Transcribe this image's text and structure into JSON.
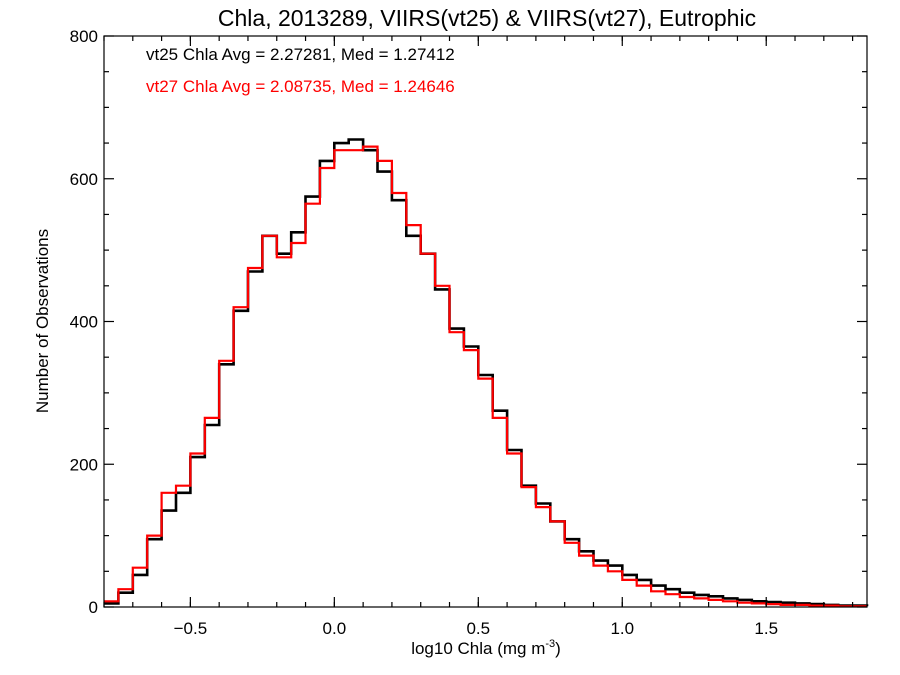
{
  "chart_data": {
    "type": "line",
    "step": true,
    "title": "Chla, 2013289, VIIRS(vt25) & VIIRS(vt27), Eutrophic",
    "xlabel": "log10 Chla (mg m",
    "xlabel_sup": "-3",
    "xlabel_end": ")",
    "ylabel": "Number of Observations",
    "xlim": [
      -0.8,
      1.85
    ],
    "ylim": [
      0,
      800
    ],
    "x_ticks": [
      -0.5,
      0.0,
      0.5,
      1.0,
      1.5
    ],
    "x_tick_labels": [
      "−0.5",
      "0.0",
      "0.5",
      "1.0",
      "1.5"
    ],
    "y_ticks": [
      0,
      200,
      400,
      600,
      800
    ],
    "y_tick_labels": [
      "0",
      "200",
      "400",
      "600",
      "800"
    ],
    "grid": false,
    "annotations": [
      {
        "text": "vt25 Chla Avg = 2.27281, Med = 1.27412",
        "color": "#000000"
      },
      {
        "text": "vt27 Chla Avg = 2.08735, Med = 1.24646",
        "color": "#ff0000"
      }
    ],
    "series": [
      {
        "color": "#000000",
        "x": [
          -0.8,
          -0.75,
          -0.7,
          -0.65,
          -0.6,
          -0.55,
          -0.5,
          -0.45,
          -0.4,
          -0.35,
          -0.3,
          -0.25,
          -0.2,
          -0.15,
          -0.1,
          -0.05,
          0.0,
          0.05,
          0.1,
          0.15,
          0.2,
          0.25,
          0.3,
          0.35,
          0.4,
          0.45,
          0.5,
          0.55,
          0.6,
          0.65,
          0.7,
          0.75,
          0.8,
          0.85,
          0.9,
          0.95,
          1.0,
          1.05,
          1.1,
          1.15,
          1.2,
          1.25,
          1.3,
          1.35,
          1.4,
          1.45,
          1.5,
          1.55,
          1.6,
          1.65,
          1.7,
          1.75,
          1.8,
          1.85
        ],
        "y": [
          5,
          20,
          45,
          95,
          135,
          160,
          210,
          255,
          340,
          415,
          470,
          520,
          495,
          525,
          575,
          625,
          650,
          655,
          640,
          610,
          570,
          520,
          495,
          445,
          390,
          365,
          325,
          275,
          220,
          170,
          145,
          120,
          95,
          78,
          65,
          58,
          45,
          38,
          30,
          25,
          20,
          17,
          15,
          12,
          10,
          8,
          7,
          6,
          5,
          4,
          3,
          2,
          2,
          1
        ]
      },
      {
        "color": "#ff0000",
        "x": [
          -0.8,
          -0.75,
          -0.7,
          -0.65,
          -0.6,
          -0.55,
          -0.5,
          -0.45,
          -0.4,
          -0.35,
          -0.3,
          -0.25,
          -0.2,
          -0.15,
          -0.1,
          -0.05,
          0.0,
          0.05,
          0.1,
          0.15,
          0.2,
          0.25,
          0.3,
          0.35,
          0.4,
          0.45,
          0.5,
          0.55,
          0.6,
          0.65,
          0.7,
          0.75,
          0.8,
          0.85,
          0.9,
          0.95,
          1.0,
          1.05,
          1.1,
          1.15,
          1.2,
          1.25,
          1.3,
          1.35,
          1.4,
          1.45,
          1.5,
          1.55,
          1.6,
          1.65,
          1.7,
          1.75,
          1.8,
          1.85
        ],
        "y": [
          8,
          25,
          55,
          100,
          160,
          170,
          215,
          265,
          345,
          420,
          475,
          520,
          490,
          510,
          565,
          615,
          640,
          640,
          645,
          625,
          580,
          535,
          495,
          450,
          385,
          360,
          320,
          265,
          215,
          168,
          140,
          120,
          90,
          72,
          58,
          50,
          38,
          30,
          22,
          18,
          14,
          12,
          10,
          8,
          6,
          5,
          4,
          3,
          3,
          2,
          2,
          1,
          1,
          1
        ]
      }
    ]
  }
}
